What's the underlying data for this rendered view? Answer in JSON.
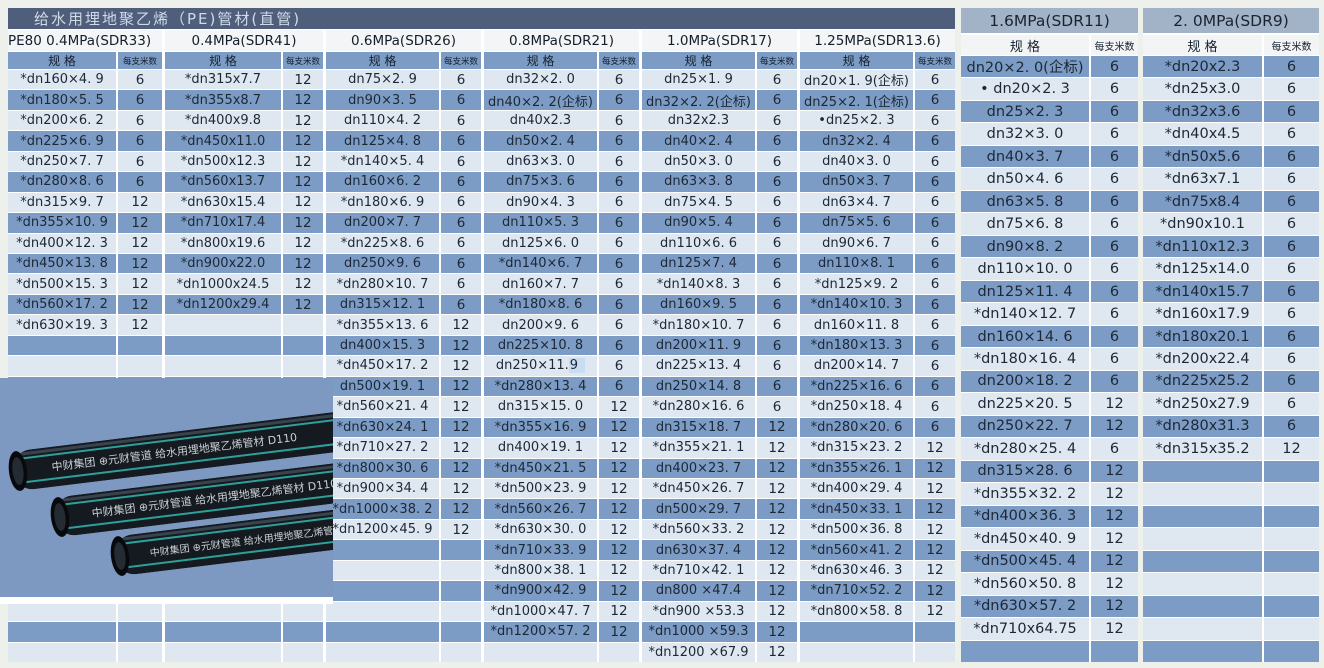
{
  "title": "给水用埋地聚乙烯（PE)管材(直管)",
  "column_headers": {
    "spec": "规 格",
    "meters_per_piece": "每支米数"
  },
  "left_groups": [
    {
      "pressure": "PE80 0.4MPa(SDR33)",
      "rows": [
        [
          "*dn160×4. 9",
          "6"
        ],
        [
          "*dn180×5. 5",
          "6"
        ],
        [
          "*dn200×6. 2",
          "6"
        ],
        [
          "*dn225×6. 9",
          "6"
        ],
        [
          "*dn250×7. 7",
          "6"
        ],
        [
          "*dn280×8. 6",
          "6"
        ],
        [
          "*dn315×9. 7",
          "12"
        ],
        [
          "*dn355×10. 9",
          "12"
        ],
        [
          "*dn400×12. 3",
          "12"
        ],
        [
          "*dn450×13. 8",
          "12"
        ],
        [
          "*dn500×15. 3",
          "12"
        ],
        [
          "*dn560×17. 2",
          "12"
        ],
        [
          "*dn630×19. 3",
          "12"
        ]
      ]
    },
    {
      "pressure": "0.4MPa(SDR41)",
      "rows": [
        [
          "*dn315x7.7",
          "12"
        ],
        [
          "*dn355x8.7",
          "12"
        ],
        [
          "*dn400x9.8",
          "12"
        ],
        [
          "*dn450x11.0",
          "12"
        ],
        [
          "*dn500x12.3",
          "12"
        ],
        [
          "*dn560x13.7",
          "12"
        ],
        [
          "*dn630x15.4",
          "12"
        ],
        [
          "*dn710x17.4",
          "12"
        ],
        [
          "*dn800x19.6",
          "12"
        ],
        [
          "*dn900x22.0",
          "12"
        ],
        [
          "*dn1000x24.5",
          "12"
        ],
        [
          "*dn1200x29.4",
          "12"
        ]
      ]
    },
    {
      "pressure": "0.6MPa(SDR26)",
      "rows": [
        [
          "dn75×2. 9",
          "6"
        ],
        [
          "dn90×3. 5",
          "6"
        ],
        [
          "dn110×4. 2",
          "6"
        ],
        [
          "dn125×4. 8",
          "6"
        ],
        [
          "*dn140×5. 4",
          "6"
        ],
        [
          "dn160×6. 2",
          "6"
        ],
        [
          "*dn180×6. 9",
          "6"
        ],
        [
          "dn200×7. 7",
          "6"
        ],
        [
          "*dn225×8. 6",
          "6"
        ],
        [
          "dn250×9. 6",
          "6"
        ],
        [
          "*dn280×10. 7",
          "6"
        ],
        [
          "dn315×12. 1",
          "6"
        ],
        [
          "*dn355×13. 6",
          "12"
        ],
        [
          "dn400×15. 3",
          "12"
        ],
        [
          "*dn450×17. 2",
          "12"
        ],
        [
          "dn500×19. 1",
          "12"
        ],
        [
          "*dn560×21. 4",
          "12"
        ],
        [
          "*dn630×24. 1",
          "12"
        ],
        [
          "*dn710×27. 2",
          "12"
        ],
        [
          "*dn800×30. 6",
          "12"
        ],
        [
          "*dn900×34. 4",
          "12"
        ],
        [
          "*dn1000×38. 2",
          "12"
        ],
        [
          "*dn1200×45. 9",
          "12"
        ]
      ]
    },
    {
      "pressure": "0.8MPa(SDR21)",
      "rows": [
        [
          "dn32×2. 0",
          "6"
        ],
        [
          "dn40×2. 2(企标)",
          "6"
        ],
        [
          "dn40x2.3",
          "6"
        ],
        [
          "dn50×2. 4",
          "6"
        ],
        [
          "dn63×3. 0",
          "6"
        ],
        [
          "dn75×3. 6",
          "6"
        ],
        [
          "dn90×4. 3",
          "6"
        ],
        [
          "dn110×5. 3",
          "6"
        ],
        [
          "dn125×6. 0",
          "6"
        ],
        [
          "*dn140×6. 7",
          "6"
        ],
        [
          "dn160×7. 7",
          "6"
        ],
        [
          "*dn180×8. 6",
          "6"
        ],
        [
          "dn200×9. 6",
          "6"
        ],
        [
          "dn225×10. 8",
          "6"
        ],
        [
          {
            "pre": "dn250×11. ",
            "sel": "9"
          },
          "6"
        ],
        [
          "*dn280×13. 4",
          "6"
        ],
        [
          "dn315×15. 0",
          "12"
        ],
        [
          "*dn355×16. 9",
          "12"
        ],
        [
          "dn400×19. 1",
          "12"
        ],
        [
          "*dn450×21. 5",
          "12"
        ],
        [
          "*dn500×23. 9",
          "12"
        ],
        [
          "*dn560×26. 7",
          "12"
        ],
        [
          "*dn630×30. 0",
          "12"
        ],
        [
          "*dn710×33. 9",
          "12"
        ],
        [
          "*dn800×38. 1",
          "12"
        ],
        [
          "*dn900×42. 9",
          "12"
        ],
        [
          "*dn1000×47. 7",
          "12"
        ],
        [
          "*dn1200×57. 2",
          "12"
        ]
      ]
    },
    {
      "pressure": "1.0MPa(SDR17)",
      "rows": [
        [
          "dn25×1. 9",
          "6"
        ],
        [
          "dn32×2. 2(企标)",
          "6"
        ],
        [
          "dn32x2.3",
          "6"
        ],
        [
          "dn40×2. 4",
          "6"
        ],
        [
          "dn50×3. 0",
          "6"
        ],
        [
          "dn63×3. 8",
          "6"
        ],
        [
          "dn75×4. 5",
          "6"
        ],
        [
          "dn90×5. 4",
          "6"
        ],
        [
          "dn110×6. 6",
          "6"
        ],
        [
          "dn125×7. 4",
          "6"
        ],
        [
          "*dn140×8. 3",
          "6"
        ],
        [
          "dn160×9. 5",
          "6"
        ],
        [
          "*dn180×10. 7",
          "6"
        ],
        [
          "dn200×11. 9",
          "6"
        ],
        [
          "dn225×13. 4",
          "6"
        ],
        [
          "dn250×14. 8",
          "6"
        ],
        [
          "*dn280×16. 6",
          "6"
        ],
        [
          "dn315×18. 7",
          "12"
        ],
        [
          "*dn355×21. 1",
          "12"
        ],
        [
          "dn400×23. 7",
          "12"
        ],
        [
          "*dn450×26. 7",
          "12"
        ],
        [
          "dn500×29. 7",
          "12"
        ],
        [
          "*dn560×33. 2",
          "12"
        ],
        [
          "dn630×37. 4",
          "12"
        ],
        [
          "*dn710×42. 1",
          "12"
        ],
        [
          "dn800 ×47.4",
          "12"
        ],
        [
          "*dn900 ×53.3",
          "12"
        ],
        [
          "*dn1000 ×59.3",
          "12"
        ],
        [
          "*dn1200 ×67.9",
          "12"
        ]
      ]
    },
    {
      "pressure": "1.25MPa(SDR13.6)",
      "rows": [
        [
          "dn20×1. 9(企标)",
          "6"
        ],
        [
          "dn25×2. 1(企标)",
          "6"
        ],
        [
          "•dn25×2. 3",
          "6"
        ],
        [
          "dn32×2. 4",
          "6"
        ],
        [
          "dn40×3. 0",
          "6"
        ],
        [
          "dn50×3. 7",
          "6"
        ],
        [
          "dn63×4. 7",
          "6"
        ],
        [
          "dn75×5. 6",
          "6"
        ],
        [
          "dn90×6. 7",
          "6"
        ],
        [
          "dn110×8. 1",
          "6"
        ],
        [
          "*dn125×9. 2",
          "6"
        ],
        [
          "*dn140×10. 3",
          "6"
        ],
        [
          "dn160×11. 8",
          "6"
        ],
        [
          "*dn180×13. 3",
          "6"
        ],
        [
          "dn200×14. 7",
          "6"
        ],
        [
          "*dn225×16. 6",
          "6"
        ],
        [
          "*dn250×18. 4",
          "6"
        ],
        [
          "*dn280×20. 6",
          "6"
        ],
        [
          "*dn315×23. 2",
          "12"
        ],
        [
          "*dn355×26. 1",
          "12"
        ],
        [
          "*dn400×29. 4",
          "12"
        ],
        [
          "*dn450×33. 1",
          "12"
        ],
        [
          "*dn500×36. 8",
          "12"
        ],
        [
          "*dn560×41. 2",
          "12"
        ],
        [
          "*dn630×46. 3",
          "12"
        ],
        [
          "*dn710×52. 2",
          "12"
        ],
        [
          "*dn800×58. 8",
          "12"
        ]
      ]
    }
  ],
  "right_groups": [
    {
      "pressure": "1.6MPa(SDR11)",
      "rows": [
        [
          "dn20×2. 0(企标)",
          "6"
        ],
        [
          "• dn20×2. 3",
          "6"
        ],
        [
          "dn25×2. 3",
          "6"
        ],
        [
          "dn32×3. 0",
          "6"
        ],
        [
          "dn40×3. 7",
          "6"
        ],
        [
          "dn50×4. 6",
          "6"
        ],
        [
          "dn63×5. 8",
          "6"
        ],
        [
          "dn75×6. 8",
          "6"
        ],
        [
          "dn90×8. 2",
          "6"
        ],
        [
          "dn110×10. 0",
          "6"
        ],
        [
          "dn125×11. 4",
          "6"
        ],
        [
          "*dn140×12. 7",
          "6"
        ],
        [
          "dn160×14. 6",
          "6"
        ],
        [
          "*dn180×16. 4",
          "6"
        ],
        [
          "dn200×18. 2",
          "6"
        ],
        [
          "dn225×20. 5",
          "12"
        ],
        [
          "dn250×22. 7",
          "12"
        ],
        [
          "*dn280×25. 4",
          "6"
        ],
        [
          "dn315×28. 6",
          "12"
        ],
        [
          "*dn355×32. 2",
          "12"
        ],
        [
          "*dn400×36. 3",
          "12"
        ],
        [
          "*dn450×40. 9",
          "12"
        ],
        [
          "*dn500×45. 4",
          "12"
        ],
        [
          "*dn560×50. 8",
          "12"
        ],
        [
          "*dn630×57. 2",
          "12"
        ],
        [
          "*dn710x64.75",
          "12"
        ]
      ]
    },
    {
      "pressure": "2. 0MPa(SDR9)",
      "rows": [
        [
          "*dn20x2.3",
          "6"
        ],
        [
          "*dn25x3.0",
          "6"
        ],
        [
          "*dn32x3.6",
          "6"
        ],
        [
          "*dn40x4.5",
          "6"
        ],
        [
          "*dn50x5.6",
          "6"
        ],
        [
          "*dn63x7.1",
          "6"
        ],
        [
          "*dn75x8.4",
          "6"
        ],
        [
          "*dn90x10.1",
          "6"
        ],
        [
          "*dn110x12.3",
          "6"
        ],
        [
          "*dn125x14.0",
          "6"
        ],
        [
          "*dn140x15.7",
          "6"
        ],
        [
          "*dn160x17.9",
          "6"
        ],
        [
          "*dn180x20.1",
          "6"
        ],
        [
          "*dn200x22.4",
          "6"
        ],
        [
          "*dn225x25.2",
          "6"
        ],
        [
          "*dn250x27.9",
          "6"
        ],
        [
          "*dn280x31.3",
          "6"
        ],
        [
          "*dn315x35.2",
          "12"
        ]
      ]
    }
  ],
  "photo": {
    "pipe_label": "中财集团 ⊕元财管道 给水用埋地聚乙烯管材 D110"
  },
  "colors": {
    "title_bg": "#4e5e7b",
    "title_text": "#cfdbe9",
    "pressure_header_bg": "#f3f5f7",
    "subheader_bg": "#7d9cc5",
    "row_blue": "#7d9cc5",
    "row_light": "#dfe7f1",
    "right_pressure_header_bg": "#a2b2c7",
    "photo_bg": "#7e99c1",
    "pipe_body": "#151a20",
    "pipe_stripe": "#2f9f99",
    "frame": "#eef0ec",
    "selection_highlight": "#c8ddf0"
  }
}
